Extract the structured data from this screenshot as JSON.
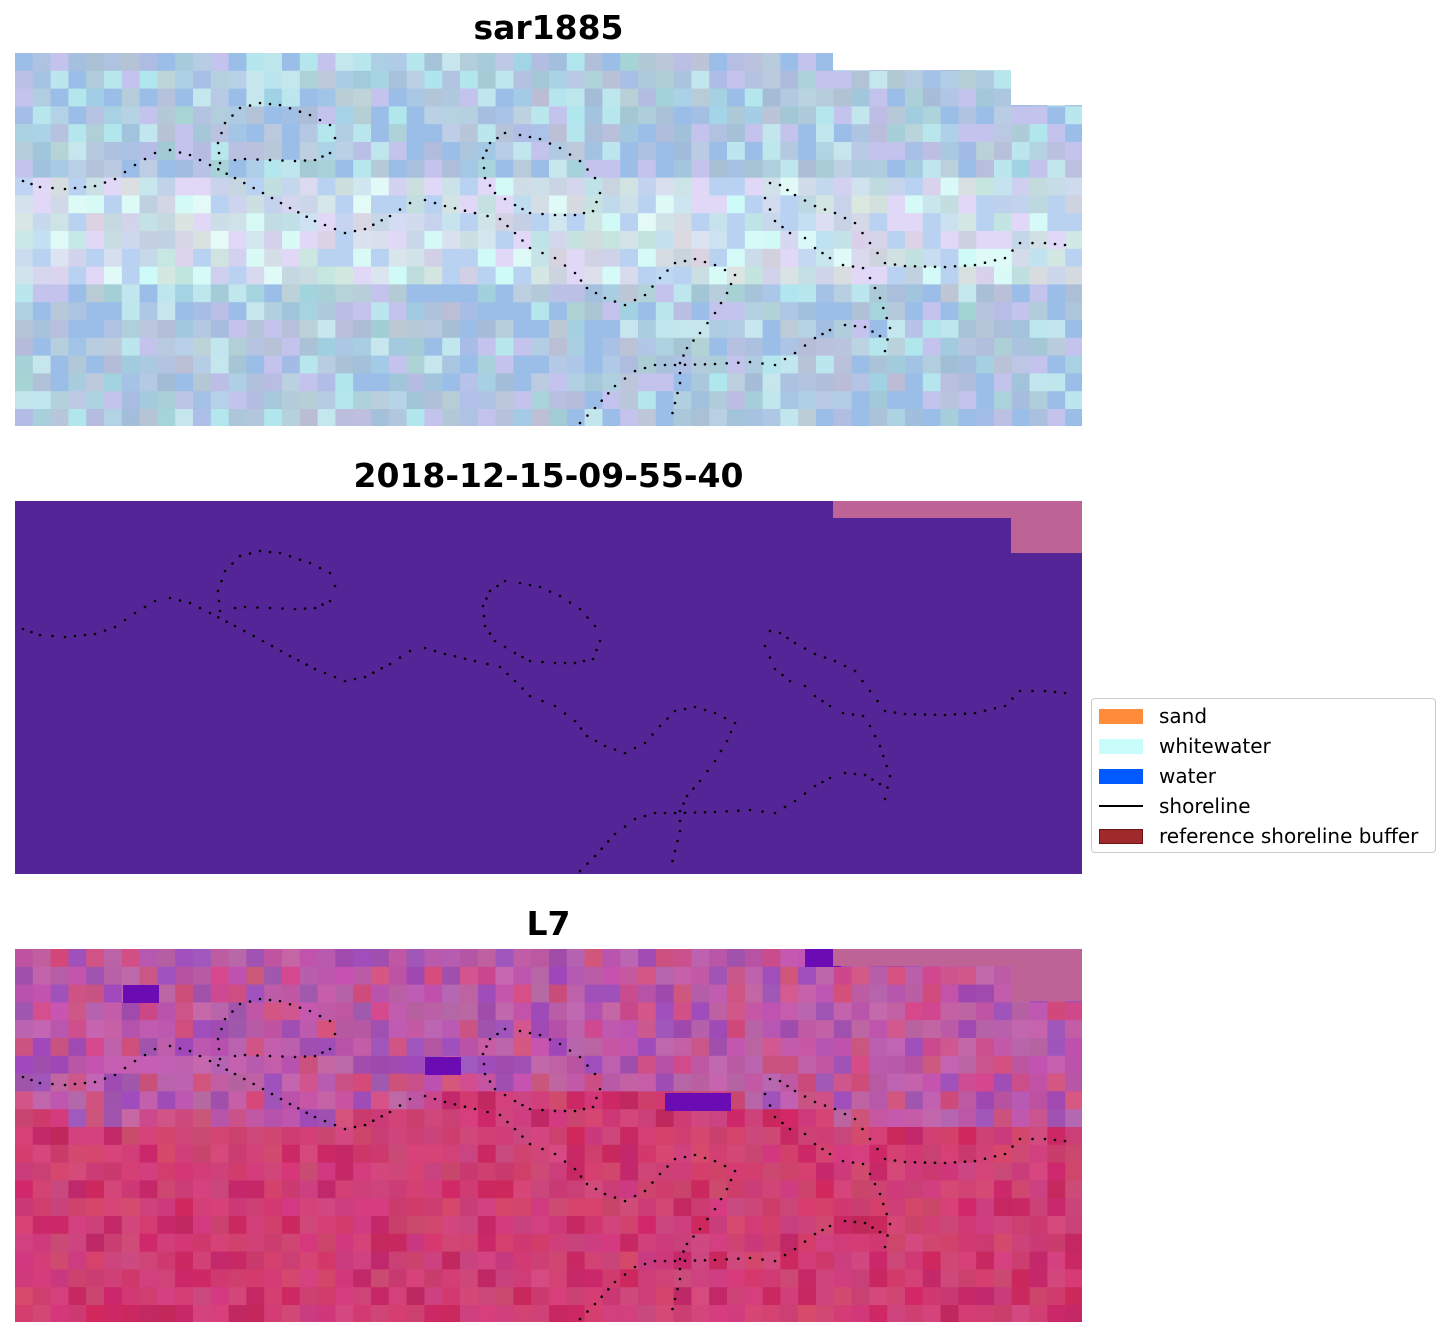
{
  "panels": [
    {
      "title": "sar1885",
      "style": "rgb"
    },
    {
      "title": "2018-12-15-09-55-40",
      "style": "classification"
    },
    {
      "title": "L7",
      "style": "index"
    }
  ],
  "legend": {
    "items": [
      {
        "label": "sand",
        "color": "#ff8c3a",
        "kind": "patch"
      },
      {
        "label": "whitewater",
        "color": "#c8fdfc",
        "kind": "patch"
      },
      {
        "label": "water",
        "color": "#005aff",
        "kind": "patch"
      },
      {
        "label": "shoreline",
        "color": "#000000",
        "kind": "line"
      },
      {
        "label": "reference shoreline buffer",
        "color": "#a0292b",
        "kind": "patch"
      }
    ]
  },
  "colors": {
    "classification_fill": "#532597",
    "classification_nodata": "#bd6395"
  }
}
